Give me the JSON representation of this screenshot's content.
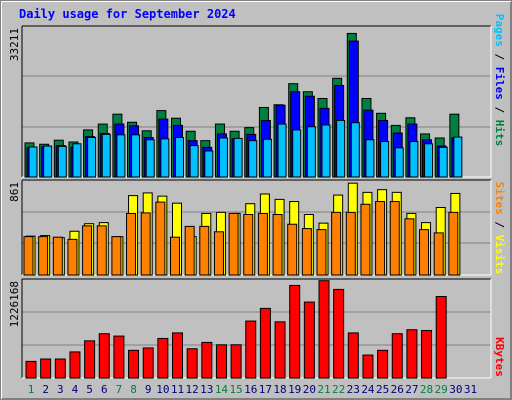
{
  "title": "Daily usage for September 2024",
  "colors": {
    "hits": "#008040",
    "files": "#0000ff",
    "pages": "#00c0ff",
    "visits": "#ffff00",
    "sites": "#ff8000",
    "kbytes": "#ff0000",
    "weekend": "#008040",
    "weekday": "#000080"
  },
  "chart_data": [
    {
      "type": "bar",
      "ylabel_max": "33211",
      "ylim": [
        0,
        33211
      ],
      "categories": [
        "1",
        "2",
        "3",
        "4",
        "5",
        "6",
        "7",
        "8",
        "9",
        "10",
        "11",
        "12",
        "13",
        "14",
        "15",
        "16",
        "17",
        "18",
        "19",
        "20",
        "21",
        "22",
        "23",
        "24",
        "25",
        "26",
        "27",
        "28",
        "29",
        "30",
        "31"
      ],
      "series": [
        {
          "name": "Hits",
          "values": [
            7600,
            7300,
            8200,
            7800,
            10500,
            11800,
            14000,
            12200,
            10300,
            14800,
            13100,
            10200,
            8100,
            11800,
            10200,
            11000,
            15500,
            16100,
            20800,
            19000,
            17500,
            22000,
            32000,
            17500,
            14200,
            11500,
            13200,
            9600,
            8700,
            14000,
            0
          ]
        },
        {
          "name": "Files",
          "values": [
            6500,
            6700,
            7000,
            6600,
            9000,
            9700,
            11800,
            11400,
            8800,
            12900,
            11500,
            8100,
            6600,
            9600,
            8500,
            9500,
            12600,
            16000,
            19000,
            18000,
            15300,
            20400,
            30300,
            14900,
            12600,
            9800,
            11800,
            8300,
            6900,
            8700,
            0
          ]
        },
        {
          "name": "Pages",
          "values": [
            6700,
            6900,
            6800,
            7400,
            8800,
            9500,
            9400,
            9400,
            8300,
            8500,
            8800,
            7000,
            5800,
            8700,
            8600,
            8100,
            8400,
            11800,
            10500,
            11200,
            11600,
            12600,
            12100,
            8300,
            7900,
            6500,
            7900,
            7400,
            6600,
            8900,
            0
          ]
        }
      ]
    },
    {
      "type": "bar",
      "ylabel_max": "861",
      "ylim": [
        0,
        861
      ],
      "categories": [
        "1",
        "2",
        "3",
        "4",
        "5",
        "6",
        "7",
        "8",
        "9",
        "10",
        "11",
        "12",
        "13",
        "14",
        "15",
        "16",
        "17",
        "18",
        "19",
        "20",
        "21",
        "22",
        "23",
        "24",
        "25",
        "26",
        "27",
        "28",
        "29",
        "30",
        "31"
      ],
      "series": [
        {
          "name": "Visits",
          "values": [
            360,
            365,
            345,
            405,
            475,
            485,
            355,
            735,
            760,
            730,
            665,
            355,
            570,
            580,
            570,
            660,
            750,
            700,
            680,
            560,
            480,
            740,
            850,
            765,
            790,
            765,
            570,
            485,
            625,
            755,
            0
          ]
        },
        {
          "name": "Sites",
          "values": [
            355,
            355,
            350,
            330,
            455,
            455,
            355,
            570,
            575,
            675,
            350,
            450,
            450,
            400,
            570,
            560,
            570,
            560,
            470,
            430,
            420,
            580,
            580,
            655,
            680,
            680,
            520,
            420,
            390,
            580,
            0
          ]
        }
      ]
    },
    {
      "type": "bar",
      "ylabel_max": "1226168",
      "ylim": [
        0,
        1226168
      ],
      "categories": [
        "1",
        "2",
        "3",
        "4",
        "5",
        "6",
        "7",
        "8",
        "9",
        "10",
        "11",
        "12",
        "13",
        "14",
        "15",
        "16",
        "17",
        "18",
        "19",
        "20",
        "21",
        "22",
        "23",
        "24",
        "25",
        "26",
        "27",
        "28",
        "29",
        "30",
        "31"
      ],
      "series": [
        {
          "name": "KBytes",
          "values": [
            210000,
            240000,
            240000,
            330000,
            470000,
            560000,
            530000,
            350000,
            380000,
            500000,
            570000,
            370000,
            450000,
            420000,
            420000,
            720000,
            880000,
            710000,
            1170000,
            960000,
            1230000,
            1120000,
            570000,
            290000,
            350000,
            560000,
            610000,
            600000,
            1030000,
            0,
            0
          ]
        }
      ]
    }
  ],
  "right_labels": {
    "top": [
      {
        "text": "Pages",
        "color": "#00c0ff"
      },
      {
        "text": " / ",
        "color": "#000000"
      },
      {
        "text": "Files",
        "color": "#0000ff"
      },
      {
        "text": " / ",
        "color": "#000000"
      },
      {
        "text": "Hits",
        "color": "#008040"
      }
    ],
    "mid": [
      {
        "text": "Sites",
        "color": "#ff8000"
      },
      {
        "text": " / ",
        "color": "#000000"
      },
      {
        "text": "Visits",
        "color": "#ffff00"
      }
    ],
    "bot": [
      {
        "text": "KBytes",
        "color": "#ff0000"
      }
    ]
  },
  "weekend_days": [
    1,
    7,
    8,
    14,
    15,
    21,
    22,
    28,
    29
  ]
}
